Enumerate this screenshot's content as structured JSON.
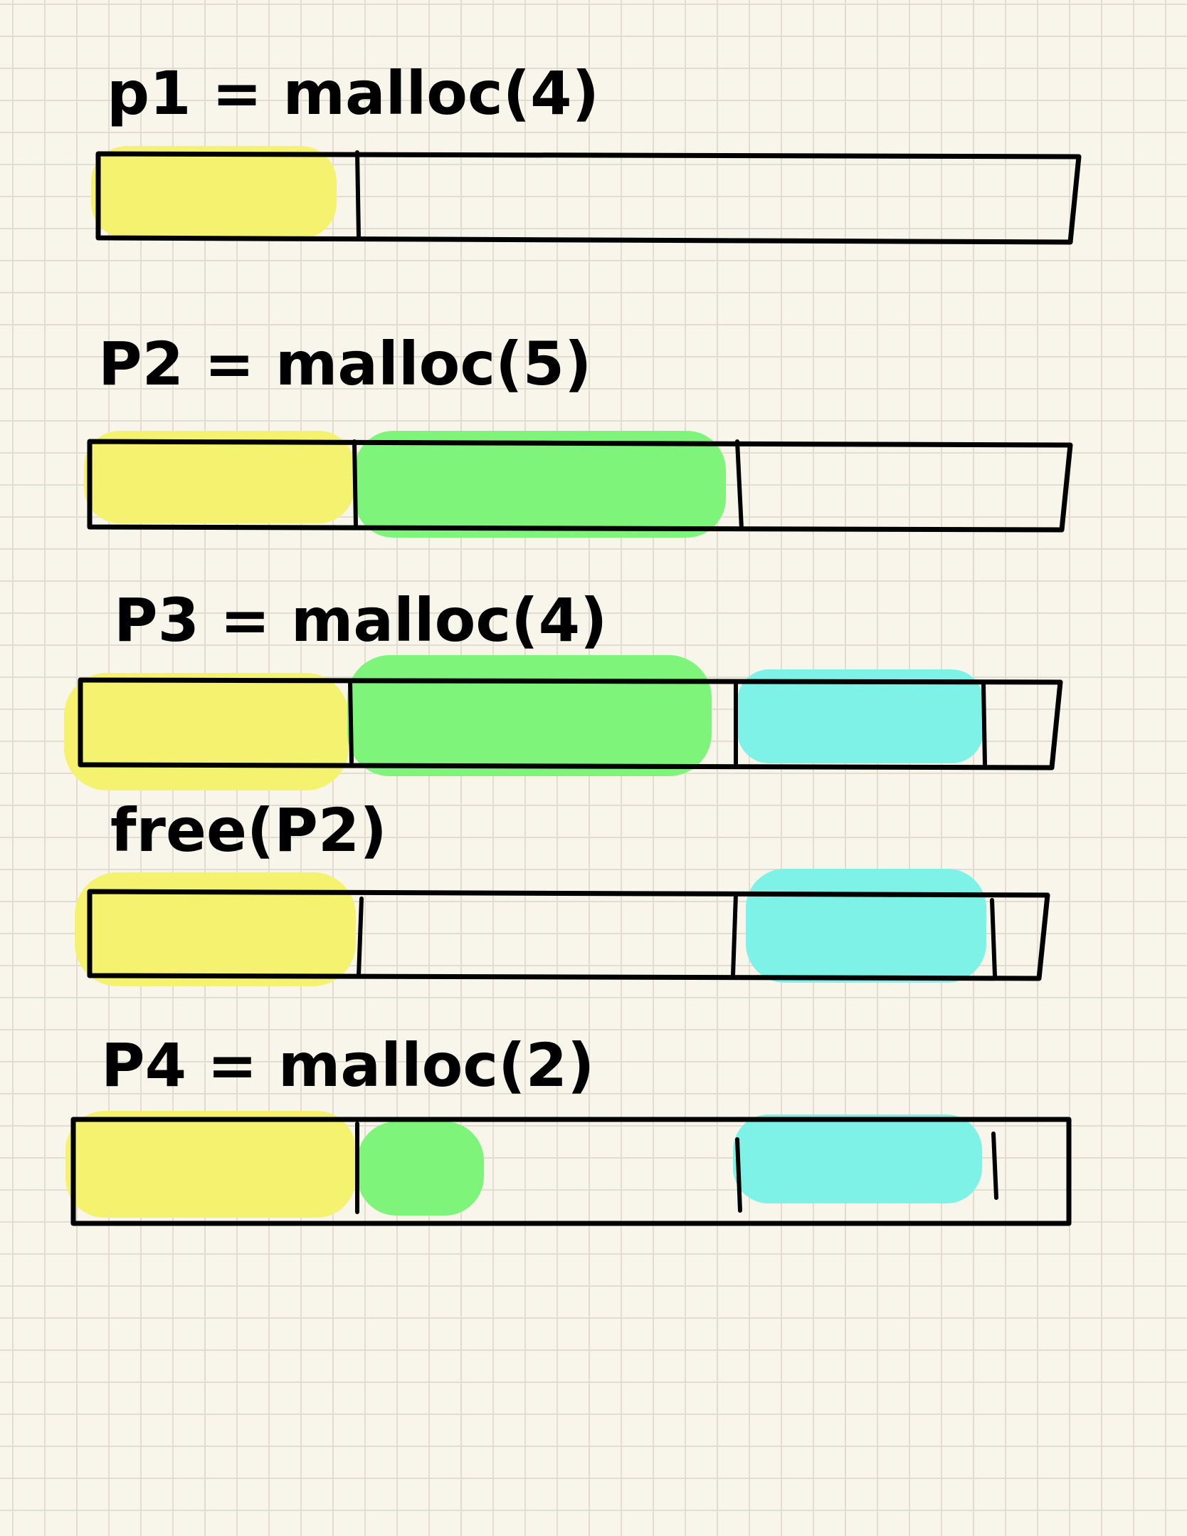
{
  "colors": {
    "background": "#f8f6ea",
    "grid": "#e2ddd0",
    "p1": "#f5f270",
    "p2": "#7ef57a",
    "p3": "#7ef2e6",
    "outline": "#000000"
  },
  "steps": [
    {
      "label": "p1 = malloc(4)",
      "segments": [
        {
          "owner": "p1",
          "color": "#f5f270"
        }
      ]
    },
    {
      "label": "P2 = malloc(5)",
      "segments": [
        {
          "owner": "p1",
          "color": "#f5f270"
        },
        {
          "owner": "p2",
          "color": "#7ef57a"
        }
      ]
    },
    {
      "label": "P3 = malloc(4)",
      "segments": [
        {
          "owner": "p1",
          "color": "#f5f270"
        },
        {
          "owner": "p2",
          "color": "#7ef57a"
        },
        {
          "owner": "p3",
          "color": "#7ef2e6"
        }
      ]
    },
    {
      "label": "free(P2)",
      "segments": [
        {
          "owner": "p1",
          "color": "#f5f270"
        },
        {
          "owner": "free",
          "color": "none"
        },
        {
          "owner": "p3",
          "color": "#7ef2e6"
        }
      ]
    },
    {
      "label": "P4 = malloc(2)",
      "segments": [
        {
          "owner": "p1",
          "color": "#f5f270"
        },
        {
          "owner": "p4",
          "color": "#7ef57a"
        },
        {
          "owner": "free",
          "color": "none"
        },
        {
          "owner": "p3",
          "color": "#7ef2e6"
        }
      ]
    }
  ]
}
